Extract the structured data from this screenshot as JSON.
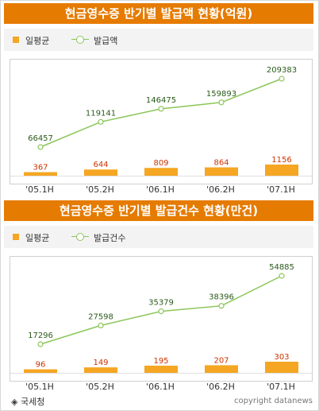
{
  "chart_data": [
    {
      "type": "bar",
      "title": "현금영수증 반기별 발급액 현황(억원)",
      "legend": [
        "일평균",
        "발급액"
      ],
      "categories": [
        "'05.1H",
        "'05.2H",
        "'06.1H",
        "'06.2H",
        "'07.1H"
      ],
      "series": [
        {
          "name": "일평균",
          "type": "bar",
          "color": "#f5a623",
          "values": [
            367,
            644,
            809,
            864,
            1156
          ],
          "labels": [
            "367",
            "644",
            "809",
            "864",
            "1156"
          ]
        },
        {
          "name": "발급액",
          "type": "line",
          "color": "#8cc65a",
          "values": [
            66457,
            119141,
            146475,
            159893,
            209383
          ],
          "labels": [
            "66457",
            "119141",
            "146475",
            "159893",
            "209383"
          ]
        }
      ]
    },
    {
      "type": "bar",
      "title": "현금영수증 반기별 발급건수 현황(만건)",
      "legend": [
        "일평균",
        "발급건수"
      ],
      "categories": [
        "'05.1H",
        "'05.2H",
        "'06.1H",
        "'06.2H",
        "'07.1H"
      ],
      "series": [
        {
          "name": "일평균",
          "type": "bar",
          "color": "#f5a623",
          "values": [
            96,
            149,
            195,
            207,
            303
          ],
          "labels": [
            "96",
            "149",
            "195",
            "207",
            "303"
          ]
        },
        {
          "name": "발급건수",
          "type": "line",
          "color": "#8cc65a",
          "values": [
            17296,
            27598,
            35379,
            38396,
            54885
          ],
          "labels": [
            "17296",
            "27598",
            "35379",
            "38396",
            "54885"
          ]
        }
      ]
    }
  ],
  "footer": {
    "source": "◈ 국세청",
    "copyright": "copyright datanews"
  },
  "colors": {
    "title_bg": "#e57b00",
    "bar": "#f5a623",
    "line": "#8cc65a",
    "bar_label": "#cc3300",
    "line_label": "#2a5a1a"
  }
}
